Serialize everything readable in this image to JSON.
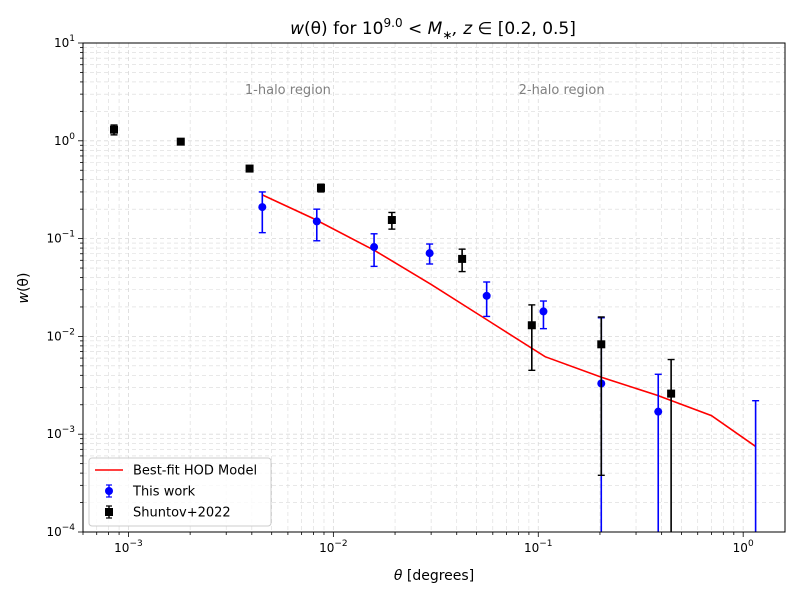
{
  "chart_data": {
    "type": "scatter",
    "title_parts": {
      "w": "w",
      "theta": "(θ) for 10",
      "exp": "9.0",
      "lt": " < ",
      "M": "M",
      "star": "∗",
      "z": ", z",
      "in": " ∈ [0.2, 0.5]"
    },
    "xlabel_parts": {
      "theta": "θ",
      "unit": " [degrees]"
    },
    "ylabel_parts": {
      "w": "w",
      "theta": "(θ)"
    },
    "x_scale": "log",
    "y_scale": "log",
    "xlim": [
      0.0006,
      1.6
    ],
    "ylim": [
      0.0001,
      10
    ],
    "grid": true,
    "legend_position": "lower-left",
    "x_ticks": [
      {
        "value": 0.001,
        "base": "10",
        "exp": "−3"
      },
      {
        "value": 0.01,
        "base": "10",
        "exp": "−2"
      },
      {
        "value": 0.1,
        "base": "10",
        "exp": "−1"
      },
      {
        "value": 1,
        "base": "10",
        "exp": "0"
      }
    ],
    "y_ticks": [
      {
        "value": 0.0001,
        "base": "10",
        "exp": "−4"
      },
      {
        "value": 0.001,
        "base": "10",
        "exp": "−3"
      },
      {
        "value": 0.01,
        "base": "10",
        "exp": "−2"
      },
      {
        "value": 0.1,
        "base": "10",
        "exp": "−1"
      },
      {
        "value": 1,
        "base": "10",
        "exp": "0"
      },
      {
        "value": 10,
        "base": "10",
        "exp": "1"
      }
    ],
    "annotations": [
      {
        "text": "1-halo region",
        "x": 0.006,
        "y": 3.3
      },
      {
        "text": "2-halo region",
        "x": 0.13,
        "y": 3.3
      }
    ],
    "series": [
      {
        "name": "Best-fit HOD Model",
        "kind": "line",
        "color": "#ff0000",
        "x": [
          0.0045,
          0.008,
          0.016,
          0.03,
          0.057,
          0.108,
          0.205,
          0.38,
          0.7,
          1.15
        ],
        "y": [
          0.28,
          0.16,
          0.075,
          0.034,
          0.0145,
          0.0062,
          0.0038,
          0.0025,
          0.00155,
          0.00075
        ]
      },
      {
        "name": "This work",
        "kind": "errorbar",
        "marker": "circle",
        "color": "#0000ff",
        "points": [
          {
            "x": 0.0045,
            "y": 0.21,
            "lo": 0.115,
            "hi": 0.3
          },
          {
            "x": 0.0083,
            "y": 0.15,
            "lo": 0.095,
            "hi": 0.2
          },
          {
            "x": 0.0158,
            "y": 0.082,
            "lo": 0.052,
            "hi": 0.112
          },
          {
            "x": 0.0295,
            "y": 0.071,
            "lo": 0.055,
            "hi": 0.088
          },
          {
            "x": 0.056,
            "y": 0.026,
            "lo": 0.016,
            "hi": 0.036
          },
          {
            "x": 0.106,
            "y": 0.018,
            "lo": 0.012,
            "hi": 0.023
          },
          {
            "x": 0.203,
            "y": 0.0033,
            "lo": 0.0001,
            "hi": 0.0155
          },
          {
            "x": 0.385,
            "y": 0.0017,
            "lo": 0.0001,
            "hi": 0.0041
          },
          {
            "x": 1.15,
            "y": null,
            "lo": 0.0001,
            "hi": 0.0022
          }
        ]
      },
      {
        "name": "Shuntov+2022",
        "kind": "errorbar",
        "marker": "square",
        "color": "#000000",
        "points": [
          {
            "x": 0.00085,
            "y": 1.3,
            "lo": 1.15,
            "hi": 1.45
          },
          {
            "x": 0.0018,
            "y": 0.98,
            "lo": 0.93,
            "hi": 1.03
          },
          {
            "x": 0.0039,
            "y": 0.52,
            "lo": 0.49,
            "hi": 0.55
          },
          {
            "x": 0.0087,
            "y": 0.33,
            "lo": 0.3,
            "hi": 0.36
          },
          {
            "x": 0.0193,
            "y": 0.155,
            "lo": 0.125,
            "hi": 0.185
          },
          {
            "x": 0.0425,
            "y": 0.062,
            "lo": 0.046,
            "hi": 0.078
          },
          {
            "x": 0.093,
            "y": 0.013,
            "lo": 0.0045,
            "hi": 0.021
          },
          {
            "x": 0.203,
            "y": 0.0083,
            "lo": 0.00038,
            "hi": 0.0158
          },
          {
            "x": 0.445,
            "y": 0.0026,
            "lo": 0.0001,
            "hi": 0.0058
          }
        ]
      }
    ]
  }
}
